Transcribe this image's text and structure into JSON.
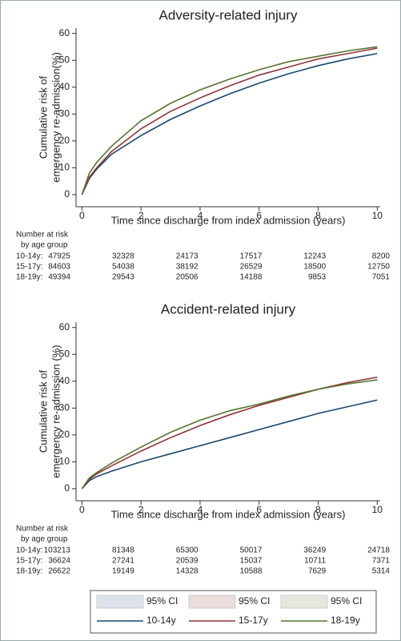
{
  "chart_data": [
    {
      "type": "line",
      "title": "Adversity-related injury",
      "x_label": "Time since discharge from index admission (years)",
      "y_label": [
        "Cumulative risk of",
        "emergency re-admission(%)"
      ],
      "x": [
        0,
        0.25,
        0.5,
        1,
        2,
        3,
        4,
        5,
        6,
        7,
        8,
        9,
        10
      ],
      "series": [
        {
          "name": "10-14y",
          "color": "#1a476f",
          "values": [
            0,
            6,
            9.5,
            15,
            22,
            28,
            33,
            37.5,
            41.5,
            45,
            48,
            50.5,
            52.5
          ]
        },
        {
          "name": "15-17y",
          "color": "#90353b",
          "values": [
            0,
            6.5,
            10,
            16,
            24.5,
            31,
            36,
            40.5,
            44.5,
            47.5,
            50.5,
            52.5,
            54.5
          ]
        },
        {
          "name": "18-19y",
          "color": "#55752f",
          "values": [
            0,
            8,
            12,
            18,
            27.5,
            34,
            39,
            43,
            46.5,
            49.5,
            51.5,
            53.5,
            55
          ]
        }
      ],
      "xlim": [
        -0.2,
        10.1
      ],
      "ylim": [
        -4.5,
        62
      ],
      "xticks": [
        0,
        2,
        4,
        6,
        8,
        10
      ],
      "yticks": [
        0,
        10,
        20,
        30,
        40,
        50,
        60
      ],
      "risk_table": {
        "title": "Number at risk",
        "subtitle": "by age group",
        "rows": [
          {
            "label": "10-14y:",
            "values": [
              47925,
              32328,
              24173,
              17517,
              12243,
              8200
            ]
          },
          {
            "label": "15-17y:",
            "values": [
              84603,
              54038,
              38192,
              26529,
              18500,
              12750
            ]
          },
          {
            "label": "18-19y:",
            "values": [
              49394,
              29543,
              20506,
              14188,
              9853,
              7051
            ]
          }
        ]
      }
    },
    {
      "type": "line",
      "title": "Accident-related injury",
      "x_label": "Time since discharge from index admission (years)",
      "y_label": [
        "Cumulative risk of",
        "emergency re-admission (%)"
      ],
      "x": [
        0,
        0.25,
        0.5,
        1,
        2,
        3,
        4,
        5,
        6,
        7,
        8,
        9,
        10
      ],
      "series": [
        {
          "color": "#1a476f",
          "values": [
            0,
            3,
            4.5,
            6.5,
            10,
            13,
            16,
            19,
            22,
            25,
            28,
            30.5,
            33
          ]
        },
        {
          "color": "#90353b",
          "values": [
            0,
            3.5,
            5.5,
            8.5,
            14,
            19,
            23.5,
            27.5,
            31,
            34,
            37,
            39.5,
            41.5
          ]
        },
        {
          "color": "#55752f",
          "values": [
            0,
            4,
            6,
            9.5,
            15.5,
            21,
            25.5,
            29,
            31.5,
            34.5,
            37,
            39,
            40.5
          ]
        }
      ],
      "xlim": [
        -0.2,
        10.1
      ],
      "ylim": [
        -4.5,
        62
      ],
      "xticks": [
        0,
        2,
        4,
        6,
        8,
        10
      ],
      "yticks": [
        0,
        10,
        20,
        30,
        40,
        50,
        60
      ],
      "risk_table": {
        "title": "Number at risk",
        "subtitle": "by age group",
        "rows": [
          {
            "label": "10-14y:",
            "values": [
              103213,
              81348,
              65300,
              50017,
              36249,
              24718
            ]
          },
          {
            "label": "15-17y:",
            "values": [
              36624,
              27241,
              20539,
              15037,
              10711,
              7371
            ]
          },
          {
            "label": "18-19y:",
            "values": [
              26622,
              19149,
              14328,
              10588,
              7629,
              5314
            ]
          }
        ]
      }
    }
  ],
  "legend": {
    "ci_label": "95% CI",
    "ci_colors": [
      "#dde2ea",
      "#ecdcdc",
      "#e4e7dd"
    ]
  }
}
